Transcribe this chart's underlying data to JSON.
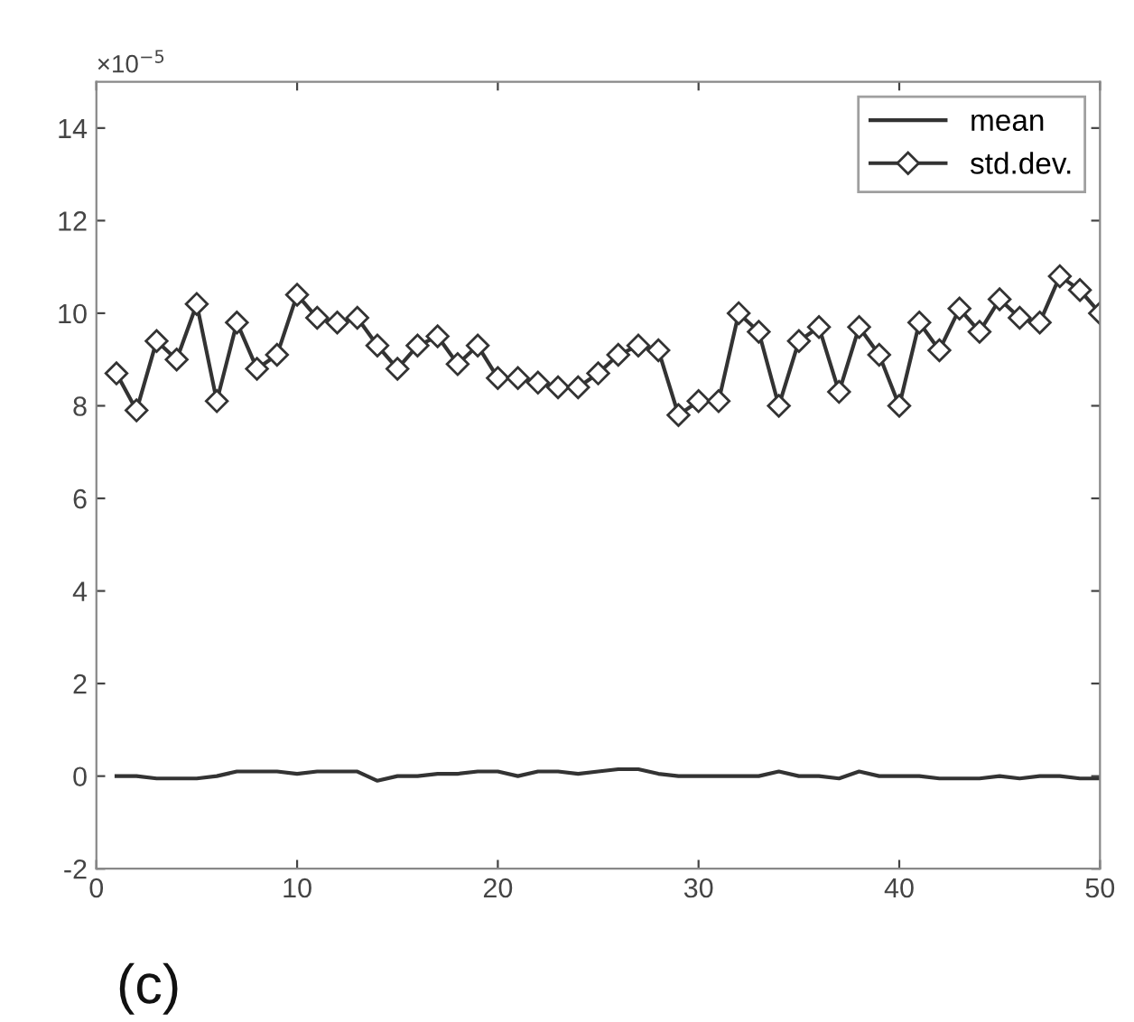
{
  "chart_data": {
    "type": "line",
    "x": [
      1,
      2,
      3,
      4,
      5,
      6,
      7,
      8,
      9,
      10,
      11,
      12,
      13,
      14,
      15,
      16,
      17,
      18,
      19,
      20,
      21,
      22,
      23,
      24,
      25,
      26,
      27,
      28,
      29,
      30,
      31,
      32,
      33,
      34,
      35,
      36,
      37,
      38,
      39,
      40,
      41,
      42,
      43,
      44,
      45,
      46,
      47,
      48,
      49,
      50
    ],
    "series": [
      {
        "name": "mean",
        "color": "#333333",
        "marker": "none",
        "values": [
          0,
          0,
          -0.05,
          -0.05,
          -0.05,
          0,
          0.1,
          0.1,
          0.1,
          0.05,
          0.1,
          0.1,
          0.1,
          -0.1,
          0,
          0,
          0.05,
          0.05,
          0.1,
          0.1,
          0,
          0.1,
          0.1,
          0.05,
          0.1,
          0.15,
          0.15,
          0.05,
          0,
          0,
          0,
          0,
          0,
          0.1,
          0,
          0,
          -0.05,
          0.1,
          0,
          0,
          0,
          -0.05,
          -0.05,
          -0.05,
          0,
          -0.05,
          0,
          0,
          -0.05,
          -0.05
        ]
      },
      {
        "name": "std.dev.",
        "color": "#333333",
        "marker": "diamond",
        "values": [
          8.7,
          7.9,
          9.4,
          9.0,
          10.2,
          8.1,
          9.8,
          8.8,
          9.1,
          10.4,
          9.9,
          9.8,
          9.9,
          9.3,
          8.8,
          9.3,
          9.5,
          8.9,
          9.3,
          8.6,
          8.6,
          8.5,
          8.4,
          8.4,
          8.7,
          9.1,
          9.3,
          9.2,
          7.8,
          8.1,
          8.1,
          10.0,
          9.6,
          8.0,
          9.4,
          9.7,
          8.3,
          9.7,
          9.1,
          8.0,
          9.8,
          9.2,
          10.1,
          9.6,
          10.3,
          9.9,
          9.8,
          10.8,
          10.5,
          10.0
        ]
      }
    ],
    "xlim": [
      0,
      50
    ],
    "xticks": [
      0,
      10,
      20,
      30,
      40,
      50
    ],
    "ylim": [
      -2,
      15
    ],
    "yticks": [
      -2,
      0,
      2,
      4,
      6,
      8,
      10,
      12,
      14
    ],
    "grid": false,
    "legend": "top right",
    "line_style": "solid",
    "annotations": [
      "×10$^{−5}$",
      "(c)"
    ]
  }
}
